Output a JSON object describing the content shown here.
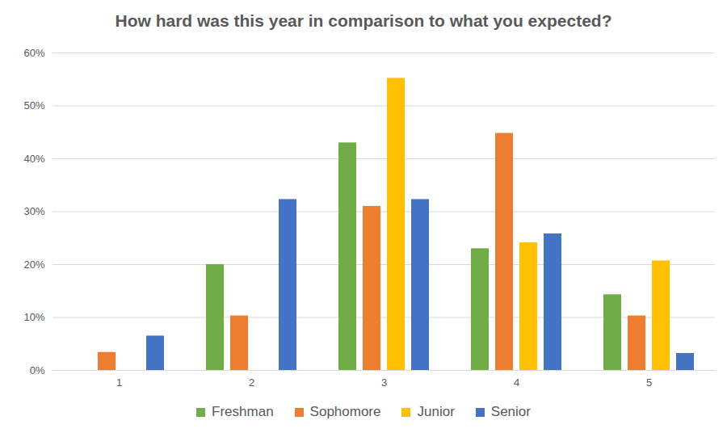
{
  "chart_data": {
    "type": "bar",
    "title": "How hard was this year in comparison to what you expected?",
    "categories": [
      "1",
      "2",
      "3",
      "4",
      "5"
    ],
    "series": [
      {
        "name": "Freshman",
        "color": "#70ad47",
        "values": [
          0,
          20,
          43,
          23,
          14.3
        ]
      },
      {
        "name": "Sophomore",
        "color": "#ed7d31",
        "values": [
          3.4,
          10.3,
          31,
          44.8,
          10.3
        ]
      },
      {
        "name": "Junior",
        "color": "#ffc000",
        "values": [
          0,
          0,
          55.2,
          24.1,
          20.7
        ]
      },
      {
        "name": "Senior",
        "color": "#4472c4",
        "values": [
          6.5,
          32.3,
          32.3,
          25.8,
          3.2
        ]
      }
    ],
    "ylim": [
      0,
      60
    ],
    "yticks": [
      {
        "value": 0,
        "label": "0%"
      },
      {
        "value": 10,
        "label": "10%"
      },
      {
        "value": 20,
        "label": "20%"
      },
      {
        "value": 30,
        "label": "30%"
      },
      {
        "value": 40,
        "label": "40%"
      },
      {
        "value": 50,
        "label": "50%"
      },
      {
        "value": 60,
        "label": "60%"
      }
    ],
    "grid": true,
    "legend": "bottom"
  }
}
